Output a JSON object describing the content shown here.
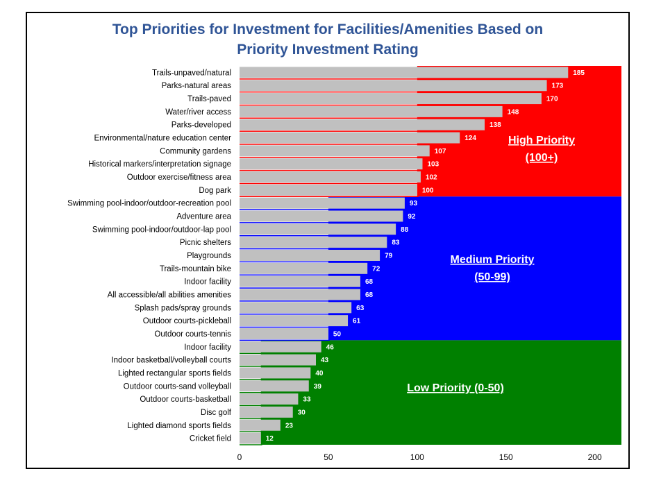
{
  "chart_data": {
    "type": "bar",
    "orientation": "horizontal",
    "title_line1": "Top Priorities for Investment for Facilities/Amenities Based on",
    "title_line2": "Priority Investment Rating",
    "xlabel": "",
    "ylabel": "",
    "xlim": [
      0,
      215
    ],
    "x_ticks": [
      0,
      50,
      100,
      150,
      200
    ],
    "grid": false,
    "categories": [
      "Trails-unpaved/natural",
      "Parks-natural areas",
      "Trails-paved",
      "Water/river access",
      "Parks-developed",
      "Environmental/nature education center",
      "Community gardens",
      "Historical markers/interpretation signage",
      "Outdoor exercise/fitness area",
      "Dog park",
      "Swimming pool-indoor/outdoor-recreation pool",
      "Adventure area",
      "Swimming pool-indoor/outdoor-lap pool",
      "Picnic shelters",
      "Playgrounds",
      "Trails-mountain bike",
      "Indoor facility",
      "All accessible/all abilities amenities",
      "Splash pads/spray grounds",
      "Outdoor courts-pickleball",
      "Outdoor courts-tennis",
      "Indoor facility",
      "Indoor basketball/volleyball courts",
      "Lighted rectangular sports fields",
      "Outdoor courts-sand volleyball",
      "Outdoor courts-basketball",
      "Disc golf",
      "Lighted diamond sports fields",
      "Cricket field"
    ],
    "values": [
      185,
      173,
      170,
      148,
      138,
      124,
      107,
      103,
      102,
      100,
      93,
      92,
      88,
      83,
      79,
      72,
      68,
      68,
      63,
      61,
      50,
      46,
      43,
      40,
      39,
      33,
      30,
      23,
      12
    ],
    "bar_color": "#c0c0c0",
    "zones": [
      {
        "label_line1": "High Priority",
        "label_line2": "(100+)",
        "color": "#ff0000",
        "from_index": 0,
        "to_index": 9
      },
      {
        "label_line1": "Medium Priority",
        "label_line2": "(50-99)",
        "color": "#0000ff",
        "from_index": 10,
        "to_index": 20
      },
      {
        "label_line1": "Low Priority (0-50)",
        "label_line2": "",
        "color": "#008000",
        "from_index": 21,
        "to_index": 28
      }
    ]
  }
}
